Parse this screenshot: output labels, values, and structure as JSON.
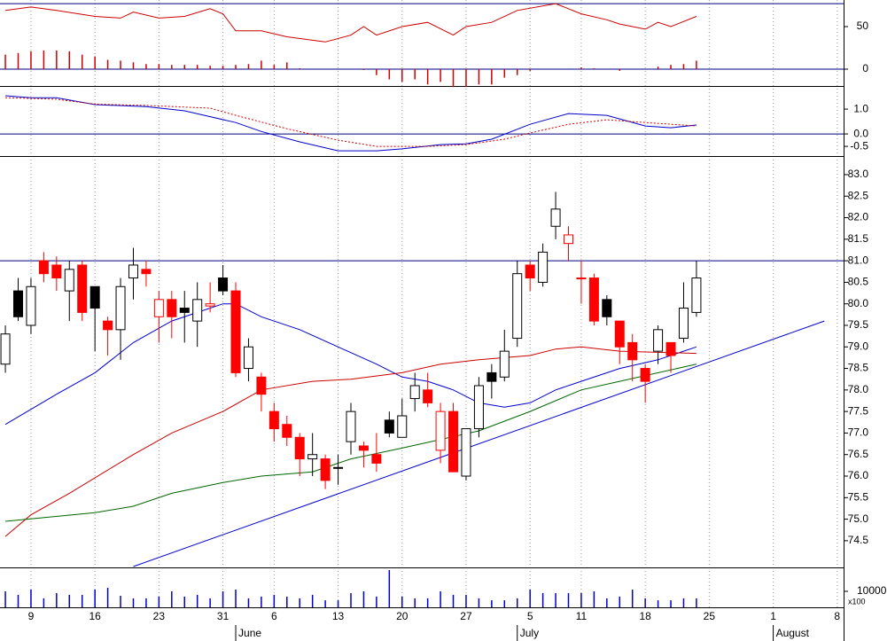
{
  "chart_data": [
    {
      "type": "line",
      "xlim": [
        -0.42,
        65.5
      ],
      "ylim": [
        -19.8,
        81.25
      ],
      "yticks": [
        50,
        0
      ],
      "hlines": [
        77,
        0
      ],
      "hline_color": "#000080",
      "series": [
        {
          "kind": "line",
          "color": "#cc0000",
          "x": [
            0,
            2,
            4,
            7,
            9,
            10,
            12,
            14,
            16,
            17,
            18,
            20,
            22,
            24,
            25,
            27,
            28,
            29,
            31,
            33,
            35,
            36,
            38,
            40,
            43,
            45,
            47,
            48,
            50,
            51,
            52,
            54
          ],
          "values": [
            69,
            73,
            69,
            62,
            60,
            67,
            60,
            62,
            71,
            65,
            45,
            45,
            38,
            34,
            32,
            40,
            50,
            40,
            50,
            55,
            40,
            50,
            55,
            69,
            77,
            65,
            58,
            53,
            47,
            55,
            50,
            62
          ]
        },
        {
          "kind": "bar",
          "color": "#cc0000",
          "x": [
            0,
            1,
            2,
            3,
            4,
            5,
            6,
            7,
            8,
            9,
            10,
            11,
            12,
            13,
            14,
            15,
            16,
            17,
            18,
            19,
            20,
            21,
            22,
            23,
            24,
            25,
            26,
            27,
            28,
            29,
            30,
            31,
            32,
            33,
            34,
            35,
            36,
            37,
            38,
            39,
            40,
            41,
            42,
            43,
            44,
            45,
            46,
            47,
            48,
            49,
            50,
            51,
            52,
            53,
            54
          ],
          "values": [
            17,
            19,
            21,
            22,
            22,
            21,
            17,
            15,
            11,
            10,
            8,
            6,
            6,
            5,
            5,
            5,
            4,
            4,
            5,
            6,
            10,
            5,
            8,
            1,
            0,
            0,
            0,
            0,
            -1,
            -7,
            -12,
            -15,
            -12,
            -18,
            -15,
            -21,
            -21,
            -18,
            -18,
            -10,
            -7,
            -2,
            0,
            0,
            0,
            2,
            1,
            0,
            -2,
            0,
            0,
            3,
            5,
            6,
            10
          ]
        }
      ]
    },
    {
      "type": "line",
      "xlim": [
        -0.42,
        65.5
      ],
      "ylim": [
        -0.89,
        1.86
      ],
      "yticks": [
        {
          "value": 1,
          "label": "1.0"
        },
        {
          "value": 0,
          "label": "0.0"
        },
        -0.5
      ],
      "hlines": [
        0
      ],
      "hline_color": "#000080",
      "series": [
        {
          "kind": "line",
          "color": "#0000cc",
          "x": [
            0,
            2,
            4,
            7,
            11,
            14,
            18,
            20,
            23,
            26,
            29,
            31,
            34,
            36,
            38,
            41,
            44,
            47,
            50,
            52,
            54
          ],
          "values": [
            1.54,
            1.46,
            1.46,
            1.18,
            1.1,
            0.93,
            0.46,
            0.1,
            -0.32,
            -0.68,
            -0.68,
            -0.6,
            -0.43,
            -0.4,
            -0.21,
            0.39,
            0.82,
            0.75,
            0.32,
            0.25,
            0.36
          ]
        },
        {
          "kind": "dotted",
          "color": "#cc0000",
          "x": [
            0,
            4,
            7,
            11,
            16,
            18,
            22,
            26,
            29,
            33,
            36,
            39,
            41,
            44,
            47,
            50,
            54
          ],
          "values": [
            1.46,
            1.4,
            1.2,
            1.15,
            1.04,
            0.75,
            0.21,
            -0.25,
            -0.5,
            -0.5,
            -0.43,
            -0.21,
            0.04,
            0.39,
            0.57,
            0.46,
            0.32
          ]
        }
      ]
    },
    {
      "type": "candlestick",
      "xlim": [
        -0.42,
        65.5
      ],
      "ylim": [
        73.88,
        83.39
      ],
      "yticks": [
        {
          "value": 83,
          "label": "83.0"
        },
        82.5,
        {
          "value": 82,
          "label": "82.0"
        },
        81.5,
        {
          "value": 81,
          "label": "81.0"
        },
        80.5,
        {
          "value": 80,
          "label": "80.0"
        },
        79.5,
        {
          "value": 79,
          "label": "79.0"
        },
        78.5,
        {
          "value": 78,
          "label": "78.0"
        },
        77.5,
        {
          "value": 77,
          "label": "77.0"
        },
        76.5,
        {
          "value": 76,
          "label": "76.0"
        },
        75.5,
        {
          "value": 75,
          "label": "75.0"
        },
        74.5
      ],
      "hlines": [
        81
      ],
      "hline_color": "#000080",
      "x": [
        0,
        1,
        2,
        3,
        4,
        5,
        6,
        7,
        8,
        9,
        10,
        11,
        12,
        13,
        14,
        15,
        16,
        17,
        18,
        19,
        20,
        21,
        22,
        23,
        24,
        25,
        26,
        27,
        28,
        29,
        30,
        31,
        32,
        33,
        34,
        35,
        36,
        37,
        38,
        39,
        40,
        41,
        42,
        43,
        44,
        45,
        46,
        47,
        48,
        49,
        50,
        51,
        52,
        53,
        54
      ],
      "open": [
        78.6,
        80.3,
        79.5,
        81.0,
        80.9,
        80.3,
        80.9,
        80.4,
        79.6,
        79.4,
        80.6,
        80.8,
        79.7,
        80.1,
        79.9,
        79.6,
        80.0,
        80.6,
        80.3,
        78.5,
        78.3,
        77.5,
        77.2,
        76.9,
        76.4,
        76.4,
        76.2,
        76.8,
        76.7,
        76.5,
        77.3,
        76.9,
        77.8,
        78.0,
        77.5,
        77.5,
        76.0,
        77.1,
        78.4,
        78.3,
        79.2,
        80.9,
        80.5,
        81.8,
        81.6,
        80.6,
        80.6,
        80.1,
        79.6,
        79.1,
        78.5,
        78.9,
        79.1,
        79.2,
        79.8
      ],
      "high": [
        79.5,
        80.6,
        80.6,
        81.2,
        81.1,
        81.0,
        81.0,
        80.4,
        79.7,
        80.6,
        81.3,
        81.0,
        80.3,
        80.3,
        80.3,
        80.5,
        80.5,
        80.9,
        80.5,
        79.2,
        78.4,
        77.7,
        77.4,
        77.0,
        77.0,
        76.5,
        76.5,
        77.7,
        76.8,
        77.0,
        77.5,
        77.8,
        78.4,
        78.4,
        77.7,
        77.7,
        77.1,
        78.3,
        78.6,
        79.4,
        81.0,
        81.0,
        81.4,
        82.6,
        81.8,
        81.0,
        80.7,
        80.2,
        79.6,
        79.3,
        78.6,
        79.5,
        79.1,
        80.5,
        81.0
      ],
      "low": [
        78.4,
        79.6,
        79.3,
        80.5,
        80.3,
        79.6,
        79.6,
        78.9,
        78.8,
        78.7,
        80.1,
        80.4,
        79.1,
        79.2,
        79.1,
        79.0,
        79.8,
        80.2,
        78.3,
        78.2,
        77.5,
        76.8,
        76.7,
        76.0,
        76.0,
        75.7,
        75.8,
        76.5,
        76.2,
        76.1,
        76.9,
        76.9,
        77.5,
        77.6,
        76.3,
        76.1,
        75.9,
        76.9,
        77.8,
        78.2,
        79.0,
        80.3,
        80.4,
        81.5,
        81.0,
        80.0,
        79.5,
        79.5,
        78.6,
        78.2,
        77.7,
        78.6,
        78.4,
        79.1,
        79.7
      ],
      "close": [
        79.3,
        79.7,
        80.4,
        80.7,
        80.6,
        80.8,
        79.8,
        79.9,
        79.4,
        80.4,
        80.9,
        80.7,
        80.1,
        79.7,
        79.8,
        80.1,
        79.95,
        80.3,
        78.4,
        79.0,
        77.9,
        77.1,
        76.9,
        76.4,
        76.5,
        75.9,
        76.2,
        77.5,
        76.6,
        76.3,
        77.0,
        77.4,
        78.1,
        77.7,
        76.6,
        76.1,
        77.1,
        78.1,
        78.2,
        78.9,
        80.7,
        80.6,
        81.2,
        82.2,
        81.4,
        80.6,
        79.6,
        79.7,
        79.0,
        78.7,
        78.2,
        79.4,
        78.8,
        79.9,
        80.6
      ],
      "fills": [
        "#ffffff",
        "#000000",
        "#ffffff",
        "#ff0000",
        "#ff0000",
        "#ffffff",
        "#ff0000",
        "#000000",
        "#ff0000",
        "#ffffff",
        "#ffffff",
        "#ff0000",
        "#ffffff",
        "#ff0000",
        "#000000",
        "#ffffff",
        "#ffffff",
        "#000000",
        "#ff0000",
        "#ffffff",
        "#ff0000",
        "#ff0000",
        "#ff0000",
        "#ff0000",
        "#ffffff",
        "#ff0000",
        "#000000",
        "#ffffff",
        "#ff0000",
        "#ff0000",
        "#000000",
        "#ffffff",
        "#ffffff",
        "#ff0000",
        "#ffffff",
        "#ff0000",
        "#ffffff",
        "#ffffff",
        "#000000",
        "#ffffff",
        "#ffffff",
        "#ff0000",
        "#ffffff",
        "#ffffff",
        "#ffffff",
        "#ff0000",
        "#ff0000",
        "#000000",
        "#ff0000",
        "#ff0000",
        "#ff0000",
        "#ffffff",
        "#ff0000",
        "#ffffff",
        "#ffffff"
      ],
      "strokes": [
        "#000000",
        "#000000",
        "#000000",
        "#ff0000",
        "#ff0000",
        "#000000",
        "#ff0000",
        "#000000",
        "#ff0000",
        "#000000",
        "#000000",
        "#ff0000",
        "#ff0000",
        "#ff0000",
        "#000000",
        "#000000",
        "#ff0000",
        "#000000",
        "#ff0000",
        "#000000",
        "#ff0000",
        "#ff0000",
        "#ff0000",
        "#ff0000",
        "#000000",
        "#ff0000",
        "#000000",
        "#000000",
        "#ff0000",
        "#ff0000",
        "#000000",
        "#000000",
        "#000000",
        "#ff0000",
        "#ff0000",
        "#ff0000",
        "#000000",
        "#000000",
        "#000000",
        "#000000",
        "#000000",
        "#ff0000",
        "#000000",
        "#000000",
        "#ff0000",
        "#ff0000",
        "#ff0000",
        "#000000",
        "#ff0000",
        "#ff0000",
        "#ff0000",
        "#000000",
        "#ff0000",
        "#000000",
        "#000000"
      ],
      "series": [
        {
          "kind": "line",
          "color": "#0000cc",
          "x": [
            0,
            4,
            7,
            10,
            13,
            15,
            17,
            18,
            20,
            23,
            26,
            29,
            31,
            33,
            35,
            37,
            39,
            41,
            43,
            45,
            48,
            51,
            53,
            54
          ],
          "values": [
            77.2,
            77.9,
            78.4,
            79.1,
            79.6,
            79.8,
            80.0,
            80.0,
            79.7,
            79.4,
            79.0,
            78.6,
            78.3,
            78.2,
            78.0,
            77.7,
            77.6,
            77.7,
            78.0,
            78.2,
            78.5,
            78.7,
            78.9,
            79.0
          ]
        },
        {
          "kind": "line",
          "color": "#cc0000",
          "x": [
            0,
            2,
            5,
            10,
            13,
            17,
            20,
            24,
            27,
            31,
            34,
            37,
            41,
            43,
            45,
            48,
            54
          ],
          "values": [
            74.6,
            75.1,
            75.6,
            76.5,
            77.0,
            77.5,
            78.0,
            78.2,
            78.25,
            78.4,
            78.6,
            78.7,
            78.8,
            78.95,
            79.0,
            78.9,
            78.85
          ]
        },
        {
          "kind": "line",
          "color": "#006600",
          "x": [
            0,
            7,
            10,
            13,
            17,
            20,
            24,
            27,
            31,
            34,
            37,
            41,
            45,
            48,
            54
          ],
          "values": [
            74.95,
            75.15,
            75.3,
            75.6,
            75.85,
            76.0,
            76.1,
            76.4,
            76.65,
            76.85,
            77.05,
            77.5,
            78.0,
            78.2,
            78.6
          ]
        },
        {
          "kind": "line",
          "color": "#0000cc",
          "x": [
            10,
            64
          ],
          "values": [
            73.9,
            79.6
          ]
        }
      ]
    },
    {
      "type": "bar",
      "xlim": [
        -0.42,
        65.5
      ],
      "ylim": [
        0,
        24400
      ],
      "yticks": [
        10000
      ],
      "unit_label": "x100",
      "color": "#0000cc",
      "x": [
        0,
        1,
        2,
        3,
        4,
        5,
        6,
        7,
        8,
        9,
        10,
        11,
        12,
        13,
        14,
        15,
        16,
        17,
        18,
        19,
        20,
        21,
        22,
        23,
        24,
        25,
        26,
        27,
        28,
        29,
        30,
        31,
        32,
        33,
        34,
        35,
        36,
        37,
        38,
        39,
        40,
        41,
        42,
        43,
        44,
        45,
        46,
        47,
        48,
        49,
        50,
        51,
        52,
        53,
        54
      ],
      "values": [
        10000,
        7800,
        11100,
        5600,
        8900,
        7800,
        7800,
        11100,
        12200,
        7200,
        5600,
        5600,
        6700,
        10000,
        6700,
        7800,
        5600,
        10000,
        11100,
        5600,
        6700,
        7800,
        6700,
        5600,
        7800,
        4400,
        4400,
        8900,
        10000,
        6700,
        23300,
        6700,
        5600,
        5600,
        10000,
        7800,
        7800,
        5600,
        4400,
        4400,
        5600,
        11100,
        8900,
        8900,
        8900,
        8900,
        10000,
        5600,
        6700,
        11100,
        5600,
        4400,
        4400,
        5600,
        5600
      ],
      "xticks": [
        {
          "value": 2,
          "label": "9"
        },
        {
          "value": 7,
          "label": "16"
        },
        {
          "value": 12,
          "label": "23"
        },
        {
          "value": 17,
          "label": "31"
        },
        {
          "value": 21,
          "label": "6"
        },
        {
          "value": 26,
          "label": "13"
        },
        {
          "value": 31,
          "label": "20"
        },
        {
          "value": 36,
          "label": "27"
        },
        {
          "value": 41,
          "label": "5"
        },
        {
          "value": 45,
          "label": "11"
        },
        {
          "value": 50,
          "label": "18"
        },
        {
          "value": 55,
          "label": "25"
        },
        {
          "value": 60,
          "label": "1"
        },
        {
          "value": 65,
          "label": "8"
        }
      ],
      "months": [
        {
          "value": 18,
          "label": "June"
        },
        {
          "value": 40,
          "label": "July"
        },
        {
          "value": 60,
          "label": "August"
        }
      ]
    }
  ]
}
